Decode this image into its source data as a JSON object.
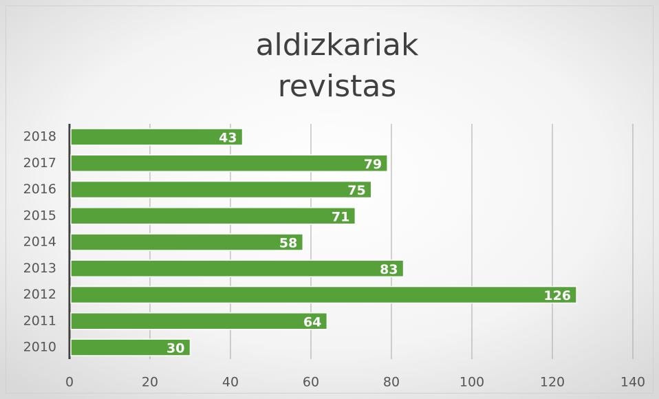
{
  "chart_data": {
    "type": "barh",
    "title": [
      "aldizkariak",
      "revistas"
    ],
    "categories": [
      "2018",
      "2017",
      "2016",
      "2015",
      "2014",
      "2013",
      "2012",
      "2011",
      "2010"
    ],
    "values": [
      43,
      79,
      75,
      71,
      58,
      83,
      126,
      64,
      30
    ],
    "color": "#56a13a",
    "xlim": [
      0,
      140
    ],
    "xticks": [
      0,
      20,
      40,
      60,
      80,
      100,
      120,
      140
    ],
    "grid": true
  }
}
